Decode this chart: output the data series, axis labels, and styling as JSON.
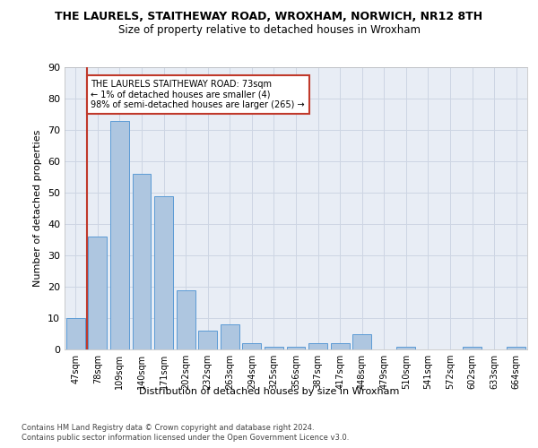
{
  "title": "THE LAURELS, STAITHEWAY ROAD, WROXHAM, NORWICH, NR12 8TH",
  "subtitle": "Size of property relative to detached houses in Wroxham",
  "xlabel": "Distribution of detached houses by size in Wroxham",
  "ylabel": "Number of detached properties",
  "footer_line1": "Contains HM Land Registry data © Crown copyright and database right 2024.",
  "footer_line2": "Contains public sector information licensed under the Open Government Licence v3.0.",
  "bin_labels": [
    "47sqm",
    "78sqm",
    "109sqm",
    "140sqm",
    "171sqm",
    "202sqm",
    "232sqm",
    "263sqm",
    "294sqm",
    "325sqm",
    "356sqm",
    "387sqm",
    "417sqm",
    "448sqm",
    "479sqm",
    "510sqm",
    "541sqm",
    "572sqm",
    "602sqm",
    "633sqm",
    "664sqm"
  ],
  "bar_values": [
    10,
    36,
    73,
    56,
    49,
    19,
    6,
    8,
    2,
    1,
    1,
    2,
    2,
    5,
    0,
    1,
    0,
    0,
    1,
    0,
    1
  ],
  "bar_color": "#aec6e0",
  "bar_edge_color": "#5b9bd5",
  "highlight_color": "#c0392b",
  "annotation_text": "THE LAURELS STAITHEWAY ROAD: 73sqm\n← 1% of detached houses are smaller (4)\n98% of semi-detached houses are larger (265) →",
  "annotation_box_color": "#c0392b",
  "ylim": [
    0,
    90
  ],
  "yticks": [
    0,
    10,
    20,
    30,
    40,
    50,
    60,
    70,
    80,
    90
  ],
  "grid_color": "#cdd5e3",
  "bg_color": "#e8edf5"
}
